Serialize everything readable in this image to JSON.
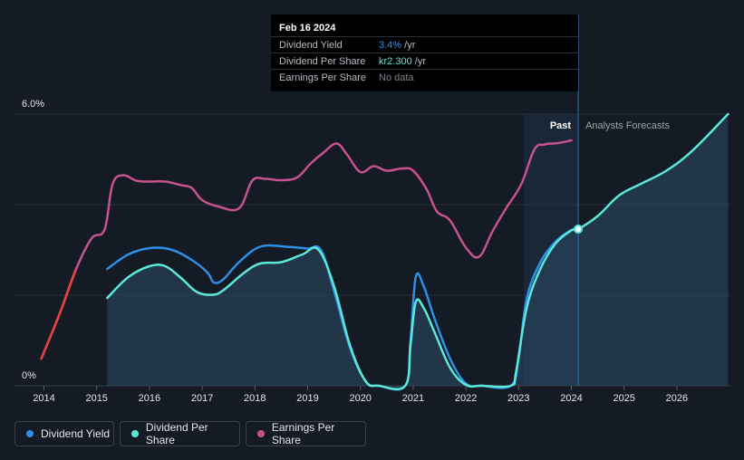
{
  "tooltip": {
    "date": "Feb 16 2024",
    "rows": [
      {
        "label": "Dividend Yield",
        "value": "3.4%",
        "unit": " /yr",
        "color": "#2f8fe6"
      },
      {
        "label": "Dividend Per Share",
        "value": "kr2.300",
        "unit": " /yr",
        "color": "#5ce8d8"
      },
      {
        "label": "Earnings Per Share",
        "value": "No data",
        "unit": "",
        "color": "#7c818a"
      }
    ]
  },
  "legend": [
    {
      "label": "Dividend Yield",
      "color": "#2f8fe6"
    },
    {
      "label": "Dividend Per Share",
      "color": "#5ce8d8"
    },
    {
      "label": "Earnings Per Share",
      "color": "#c8528e"
    }
  ],
  "chart_data": {
    "type": "line",
    "x_ticks": [
      "2014",
      "2015",
      "2016",
      "2017",
      "2018",
      "2019",
      "2020",
      "2021",
      "2022",
      "2023",
      "2024",
      "2025",
      "2026"
    ],
    "y_ticks": [
      "0%",
      "6.0%"
    ],
    "ylim": [
      0,
      6.0
    ],
    "xlim": [
      2013.95,
      2026.97
    ],
    "past_label": "Past",
    "forecast_label": "Analysts Forecasts",
    "past_region": [
      2023.1,
      2024.13
    ],
    "series": [
      {
        "name": "Dividend Yield",
        "color": "#2f8fe6",
        "x": [
          2015.2,
          2015.6,
          2016.0,
          2016.4,
          2016.8,
          2017.1,
          2017.22,
          2017.4,
          2017.7,
          2018.1,
          2018.6,
          2019.0,
          2019.25,
          2019.5,
          2019.8,
          2020.1,
          2020.35,
          2020.85,
          2020.95,
          2021.05,
          2021.2,
          2021.4,
          2021.7,
          2022.0,
          2022.3,
          2022.85,
          2023.0,
          2023.15,
          2023.4,
          2023.7,
          2024.0,
          2024.13
        ],
        "y": [
          2.58,
          2.9,
          3.04,
          3.01,
          2.78,
          2.5,
          2.28,
          2.35,
          2.73,
          3.07,
          3.07,
          3.03,
          3.0,
          2.1,
          0.85,
          0.1,
          0.0,
          0.0,
          1.0,
          2.4,
          2.2,
          1.5,
          0.6,
          0.05,
          0.0,
          0.0,
          0.6,
          1.9,
          2.7,
          3.18,
          3.44,
          3.46
        ]
      },
      {
        "name": "Dividend Per Share",
        "color": "#5ce8d8",
        "x": [
          2015.2,
          2015.6,
          2016.0,
          2016.3,
          2016.6,
          2016.9,
          2017.2,
          2017.4,
          2017.8,
          2018.1,
          2018.5,
          2018.9,
          2019.2,
          2019.5,
          2019.8,
          2020.1,
          2020.35,
          2020.85,
          2020.95,
          2021.05,
          2021.2,
          2021.4,
          2021.7,
          2022.0,
          2022.3,
          2022.85,
          2022.95,
          2023.15,
          2023.4,
          2023.7,
          2024.0,
          2024.13,
          2024.5,
          2024.9,
          2025.3,
          2025.8,
          2026.3,
          2026.97
        ],
        "y": [
          1.94,
          2.4,
          2.64,
          2.64,
          2.38,
          2.07,
          2.01,
          2.11,
          2.5,
          2.7,
          2.73,
          2.9,
          3.01,
          2.2,
          0.9,
          0.1,
          0.0,
          0.0,
          0.9,
          1.85,
          1.72,
          1.2,
          0.4,
          0.02,
          0.0,
          0.0,
          0.3,
          1.7,
          2.55,
          3.14,
          3.43,
          3.46,
          3.75,
          4.2,
          4.45,
          4.75,
          5.2,
          6.0
        ]
      },
      {
        "name": "Earnings Per Share",
        "color": "#c8528e",
        "x": [
          2013.95,
          2014.3,
          2014.6,
          2014.9,
          2015.15,
          2015.3,
          2015.5,
          2015.75,
          2016.0,
          2016.3,
          2016.6,
          2016.8,
          2017.0,
          2017.3,
          2017.7,
          2017.95,
          2018.2,
          2018.5,
          2018.8,
          2019.05,
          2019.3,
          2019.55,
          2019.75,
          2020.0,
          2020.25,
          2020.5,
          2020.8,
          2021.0,
          2021.25,
          2021.45,
          2021.7,
          2022.0,
          2022.25,
          2022.5,
          2022.75,
          2023.05,
          2023.3,
          2023.5,
          2023.75,
          2024.0
        ],
        "y": [
          0.6,
          1.6,
          2.55,
          3.25,
          3.45,
          4.45,
          4.65,
          4.53,
          4.51,
          4.51,
          4.43,
          4.37,
          4.1,
          3.96,
          3.92,
          4.53,
          4.57,
          4.54,
          4.6,
          4.9,
          5.15,
          5.35,
          5.1,
          4.72,
          4.85,
          4.75,
          4.8,
          4.75,
          4.35,
          3.85,
          3.65,
          3.05,
          2.85,
          3.4,
          3.9,
          4.45,
          5.22,
          5.33,
          5.36,
          5.42
        ]
      }
    ],
    "highlight_point": {
      "x": 2024.13,
      "y": 3.46
    }
  }
}
